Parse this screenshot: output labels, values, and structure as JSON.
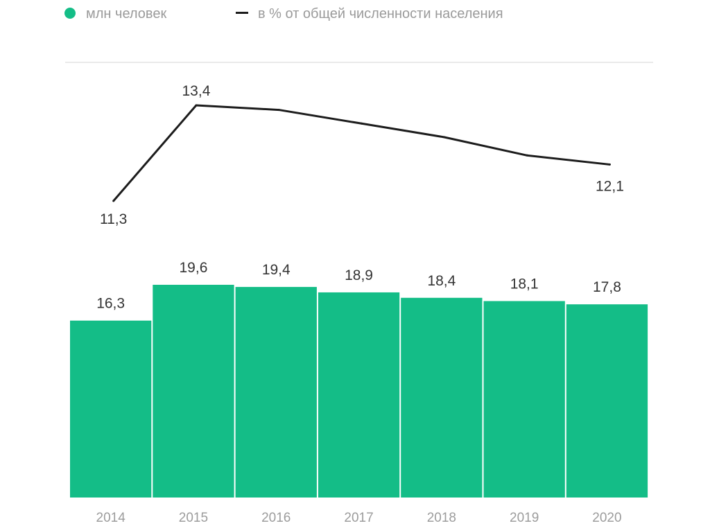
{
  "chart_data": {
    "type": "bar+line",
    "categories": [
      "2014",
      "2015",
      "2016",
      "2017",
      "2018",
      "2019",
      "2020"
    ],
    "series": [
      {
        "name": "млн человек",
        "type": "bar",
        "color": "#14bd87",
        "values": [
          16.3,
          19.6,
          19.4,
          18.9,
          18.4,
          18.1,
          17.8
        ],
        "labels": [
          "16,3",
          "19,6",
          "19,4",
          "18,9",
          "18,4",
          "18,1",
          "17,8"
        ]
      },
      {
        "name": "в % от общей численности населения",
        "type": "line",
        "color": "#1c1c1c",
        "values": [
          11.3,
          13.4,
          13.3,
          13.0,
          12.7,
          12.3,
          12.1
        ],
        "labels": [
          "11,3",
          "13,4",
          "",
          "",
          "",
          "",
          "12,1"
        ]
      }
    ],
    "legend": {
      "items": [
        {
          "label": "млн человек",
          "marker": "dot",
          "color": "#14bd87"
        },
        {
          "label": "в % от общей численности населения",
          "marker": "dash",
          "color": "#1c1c1c"
        }
      ]
    },
    "ylim_bars": [
      0,
      19.6
    ],
    "ylim_line": [
      11.3,
      13.4
    ],
    "grid": false
  }
}
